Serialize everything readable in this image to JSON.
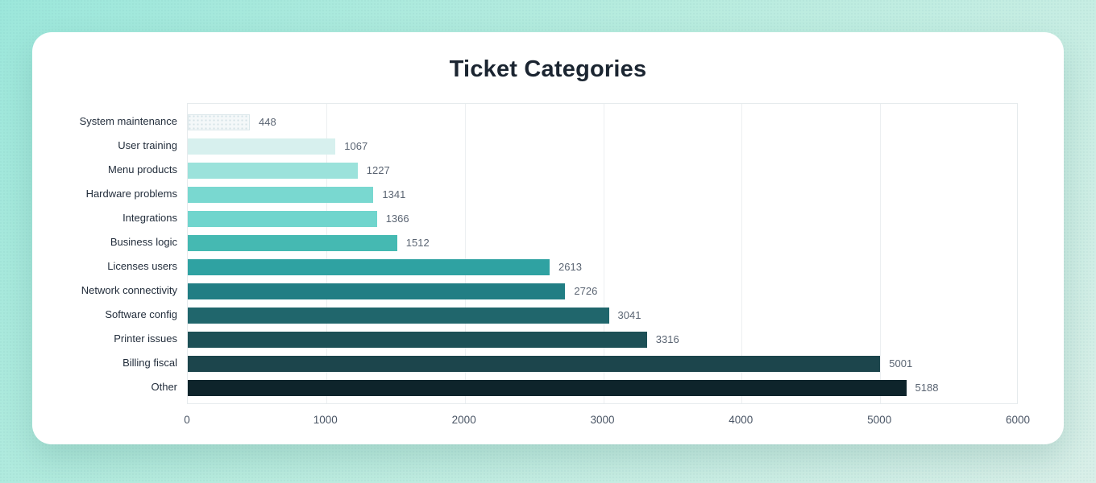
{
  "page": {
    "background_gradient": [
      "#9ce7db",
      "#d9efe8"
    ],
    "card_background": "#ffffff"
  },
  "chart_data": {
    "type": "bar",
    "orientation": "horizontal",
    "title": "Ticket Categories",
    "title_color": "#1b2531",
    "categories": [
      "System maintenance",
      "User training",
      "Menu products",
      "Hardware problems",
      "Integrations",
      "Business logic",
      "Licenses users",
      "Network connectivity",
      "Software config",
      "Printer issues",
      "Billing fiscal",
      "Other"
    ],
    "values": [
      448,
      1067,
      1227,
      1341,
      1366,
      1512,
      2613,
      2726,
      3041,
      3316,
      5001,
      5188
    ],
    "bar_colors": [
      "#f4f8f9",
      "#d7f0ee",
      "#9be2db",
      "#79d8d0",
      "#70d5cd",
      "#45b9b2",
      "#2fa2a2",
      "#217e84",
      "#20666c",
      "#1d5056",
      "#1c454c",
      "#0e242b"
    ],
    "textured_bars": [
      0
    ],
    "xlim": [
      0,
      6000
    ],
    "x_ticks": [
      "0",
      "1000",
      "2000",
      "3000",
      "4000",
      "5000",
      "6000"
    ],
    "grid": "vertical",
    "value_labels_shown": true,
    "legend": "none"
  }
}
